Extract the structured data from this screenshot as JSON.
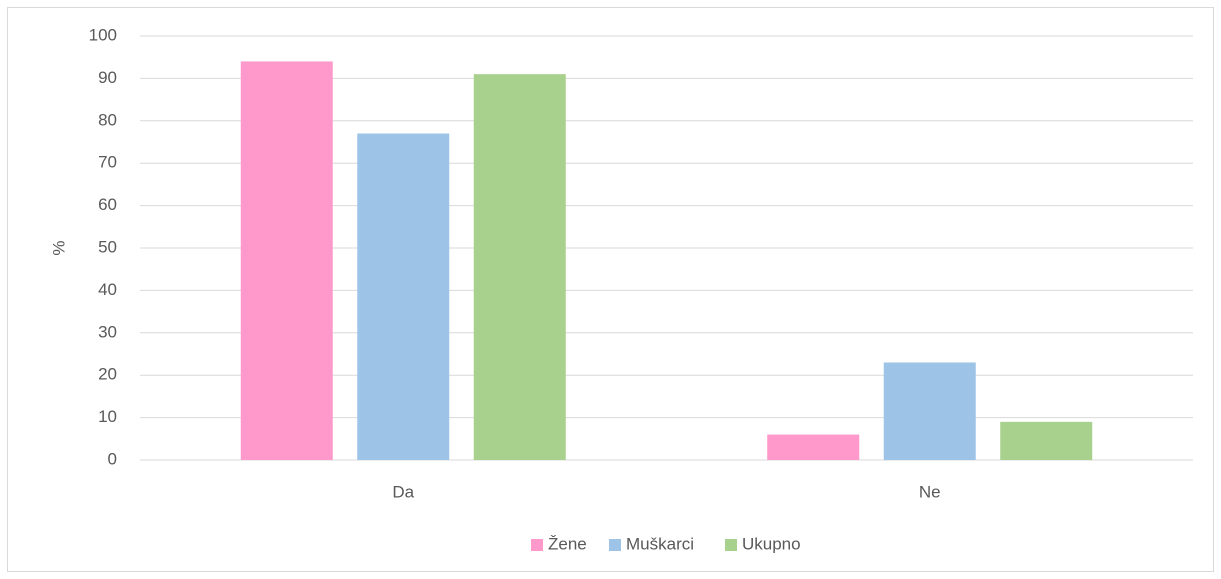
{
  "chart_data": {
    "type": "bar",
    "y_label": "%",
    "categories": [
      "Da",
      "Ne"
    ],
    "series": [
      {
        "name": "Žene",
        "color": "#ff99cc",
        "values": [
          94,
          6
        ]
      },
      {
        "name": "Muškarci",
        "color": "#9dc3e6",
        "values": [
          77,
          23
        ]
      },
      {
        "name": "Ukupno",
        "color": "#a9d18e",
        "values": [
          91,
          9
        ]
      }
    ],
    "ylim": [
      0,
      100
    ],
    "yticks": [
      0,
      10,
      20,
      30,
      40,
      50,
      60,
      70,
      80,
      90,
      100
    ],
    "grid": true,
    "legend": "bottom"
  }
}
